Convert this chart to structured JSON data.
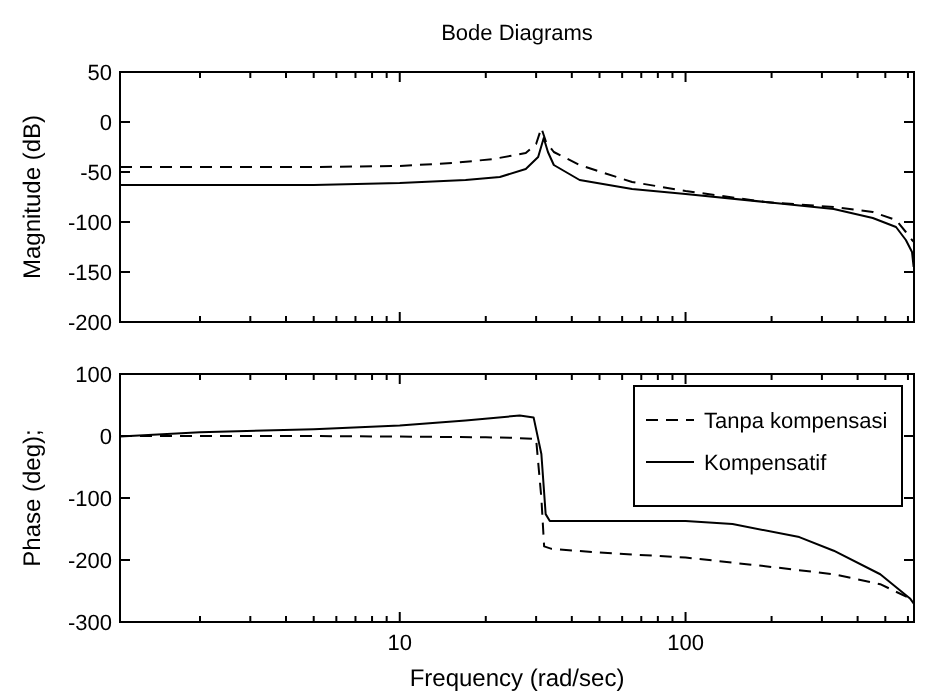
{
  "chart_data": [
    {
      "type": "line",
      "title": "Bode Diagrams",
      "ylabel": "Magnitude (dB)",
      "log": "x",
      "grid": false,
      "legend": false,
      "tick_labels": "y",
      "xlim": [
        1.05,
        630
      ],
      "ylim": [
        -200,
        50
      ],
      "yticks": [
        -200,
        -150,
        -100,
        -50,
        0,
        50
      ],
      "xticks": [
        {
          "value": 2,
          "label": null
        },
        {
          "value": 3,
          "label": null
        },
        {
          "value": 4,
          "label": null
        },
        {
          "value": 5,
          "label": null
        },
        {
          "value": 6,
          "label": null
        },
        {
          "value": 7,
          "label": null
        },
        {
          "value": 8,
          "label": null
        },
        {
          "value": 9,
          "label": null
        },
        {
          "value": 10,
          "label": null
        },
        {
          "value": 20,
          "label": null
        },
        {
          "value": 30,
          "label": null
        },
        {
          "value": 40,
          "label": null
        },
        {
          "value": 50,
          "label": null
        },
        {
          "value": 60,
          "label": null
        },
        {
          "value": 70,
          "label": null
        },
        {
          "value": 80,
          "label": null
        },
        {
          "value": 90,
          "label": null
        },
        {
          "value": 100,
          "label": null
        },
        {
          "value": 200,
          "label": null
        },
        {
          "value": 300,
          "label": null
        },
        {
          "value": 400,
          "label": null
        },
        {
          "value": 500,
          "label": null
        },
        {
          "value": 600,
          "label": null
        }
      ],
      "series": [
        {
          "color": "#000000",
          "line_style": "dashed",
          "x": [
            1.05,
            5,
            10,
            15.4,
            21.3,
            27.6,
            30,
            31.3,
            32.5,
            34.6,
            42.6,
            65,
            100,
            190,
            330,
            452,
            545,
            590,
            620,
            630
          ],
          "values": [
            -45,
            -45,
            -44,
            -41,
            -37,
            -31,
            -22,
            -6,
            -20,
            -30,
            -43,
            -60,
            -69,
            -80,
            -85,
            -90,
            -98,
            -110,
            -118,
            -120
          ]
        },
        {
          "color": "#000000",
          "line_style": "solid",
          "x": [
            1.05,
            5,
            10,
            17,
            22.4,
            27.6,
            30.5,
            31.9,
            33,
            34.6,
            42.6,
            65,
            100,
            190,
            330,
            452,
            545,
            590,
            620,
            628
          ],
          "values": [
            -63,
            -63,
            -61,
            -58,
            -55,
            -47,
            -35,
            -16,
            -30,
            -43,
            -58,
            -67,
            -72,
            -80,
            -87,
            -96,
            -105,
            -118,
            -130,
            -145
          ]
        }
      ]
    },
    {
      "type": "line",
      "ylabel": "Phase (deg);",
      "xlabel": "Frequency (rad/sec)",
      "log": "x",
      "grid": false,
      "legend": "top right",
      "xlim": [
        1.05,
        630
      ],
      "ylim": [
        -300,
        100
      ],
      "yticks": [
        -300,
        -200,
        -100,
        0,
        100
      ],
      "xticks": [
        {
          "value": 2,
          "label": null
        },
        {
          "value": 3,
          "label": null
        },
        {
          "value": 4,
          "label": null
        },
        {
          "value": 5,
          "label": null
        },
        {
          "value": 6,
          "label": null
        },
        {
          "value": 7,
          "label": null
        },
        {
          "value": 8,
          "label": null
        },
        {
          "value": 9,
          "label": null
        },
        10,
        {
          "value": 20,
          "label": null
        },
        {
          "value": 30,
          "label": null
        },
        {
          "value": 40,
          "label": null
        },
        {
          "value": 50,
          "label": null
        },
        {
          "value": 60,
          "label": null
        },
        {
          "value": 70,
          "label": null
        },
        {
          "value": 80,
          "label": null
        },
        {
          "value": 90,
          "label": null
        },
        100,
        {
          "value": 200,
          "label": null
        },
        {
          "value": 300,
          "label": null
        },
        {
          "value": 400,
          "label": null
        },
        {
          "value": 500,
          "label": null
        },
        {
          "value": 600,
          "label": null
        }
      ],
      "series": [
        {
          "name": "Tanpa kompensasi",
          "color": "#000000",
          "line_style": "dashed",
          "x": [
            1.05,
            5,
            10,
            20,
            25,
            30,
            31.3,
            32,
            34,
            50,
            100,
            190,
            330,
            480,
            610,
            630
          ],
          "values": [
            0,
            0,
            -1,
            -2,
            -3,
            -5,
            -100,
            -178,
            -182,
            -188,
            -196,
            -210,
            -223,
            -239,
            -262,
            -268
          ]
        },
        {
          "name": "Kompensatif",
          "color": "#000000",
          "line_style": "solid",
          "x": [
            1.05,
            2,
            5,
            10,
            17,
            26.3,
            29.4,
            31.3,
            32.4,
            33.5,
            50,
            100,
            146,
            250,
            330,
            480,
            610,
            630
          ],
          "values": [
            -1,
            6,
            11,
            17,
            25,
            33,
            30,
            -29,
            -126,
            -137,
            -137,
            -137,
            -142,
            -163,
            -185,
            -223,
            -262,
            -271
          ]
        }
      ]
    }
  ]
}
